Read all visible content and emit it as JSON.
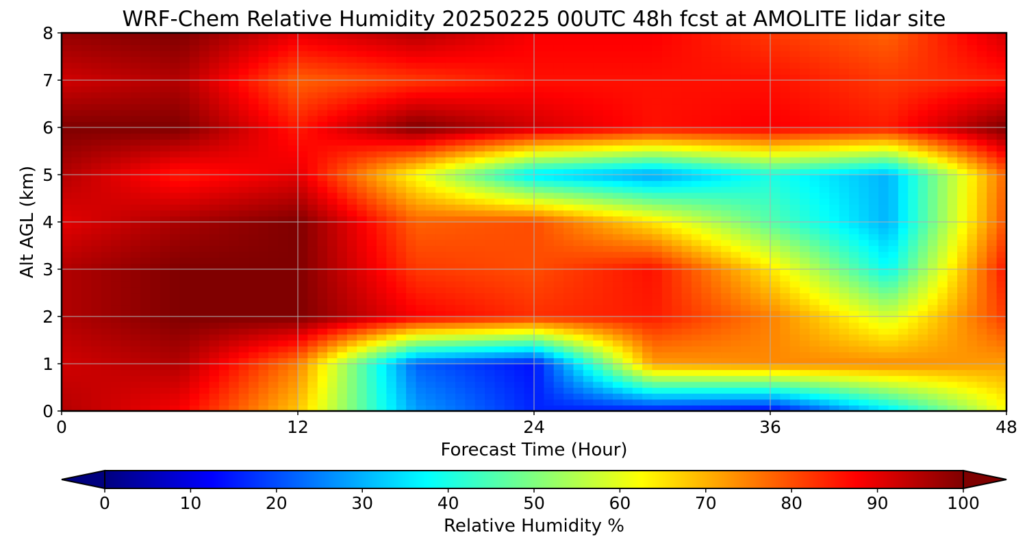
{
  "chart_data": {
    "type": "heatmap",
    "title": "WRF-Chem Relative Humidity 20250225 00UTC 48h fcst at AMOLITE lidar site",
    "xlabel": "Forecast Time (Hour)",
    "ylabel": "Alt AGL (km)",
    "xlim": [
      0,
      48
    ],
    "ylim": [
      0,
      8
    ],
    "xticks": [
      "0",
      "12",
      "24",
      "36",
      "48"
    ],
    "yticks": [
      "0",
      "1",
      "2",
      "3",
      "4",
      "5",
      "6",
      "7",
      "8"
    ],
    "grid": true,
    "colormap": "jet",
    "colorbar": {
      "label": "Relative Humidity %",
      "range": [
        0,
        100
      ],
      "ticks": [
        "0",
        "10",
        "20",
        "30",
        "40",
        "50",
        "60",
        "70",
        "80",
        "90",
        "100"
      ],
      "extend": "both",
      "placement": "bottom"
    },
    "x_hours": [
      0,
      6,
      12,
      18,
      24,
      30,
      36,
      42,
      48
    ],
    "z_km": [
      0,
      1,
      2,
      3,
      4,
      5,
      6,
      7,
      8
    ],
    "values": [
      [
        95,
        88,
        68,
        28,
        16,
        14,
        12,
        35,
        62
      ],
      [
        92,
        95,
        75,
        22,
        14,
        72,
        74,
        74,
        72
      ],
      [
        95,
        100,
        100,
        88,
        83,
        85,
        75,
        58,
        82
      ],
      [
        95,
        100,
        100,
        82,
        80,
        86,
        65,
        38,
        86
      ],
      [
        90,
        96,
        100,
        78,
        80,
        65,
        46,
        30,
        80
      ],
      [
        95,
        85,
        90,
        62,
        35,
        28,
        40,
        30,
        78
      ],
      [
        100,
        100,
        85,
        100,
        92,
        86,
        88,
        85,
        100
      ],
      [
        92,
        95,
        78,
        82,
        86,
        86,
        86,
        82,
        85
      ],
      [
        98,
        100,
        90,
        95,
        88,
        88,
        82,
        78,
        92
      ]
    ]
  }
}
